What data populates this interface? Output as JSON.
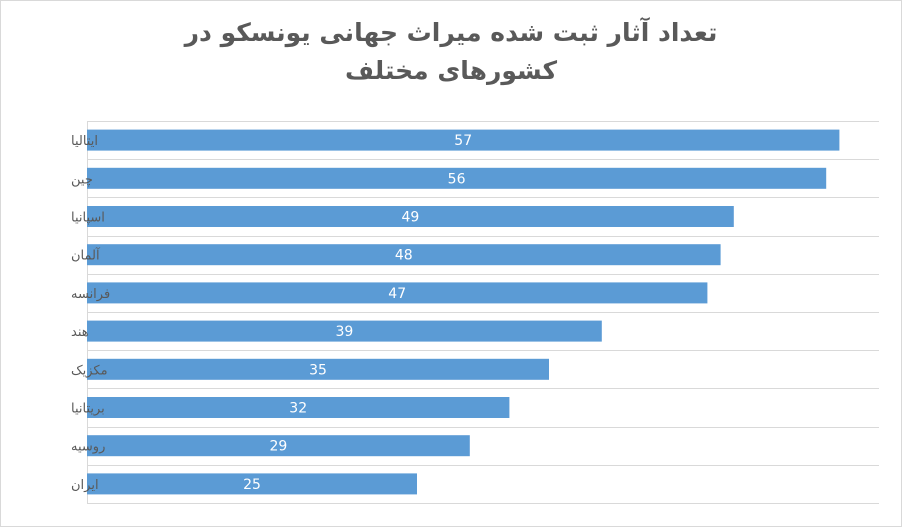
{
  "chart_data": {
    "type": "bar",
    "orientation": "horizontal",
    "title_lines": [
      "تعداد آثار ثبت شده میراث جهانی یونسکو در",
      "کشورهای مختلف"
    ],
    "categories": [
      "ایتالیا",
      "چین",
      "اسپانیا",
      "آلمان",
      "فرانسه",
      "هند",
      "مکزیک",
      "بریتانیا",
      "روسیه",
      "ایران"
    ],
    "values": [
      57,
      56,
      49,
      48,
      47,
      39,
      35,
      32,
      29,
      25
    ],
    "xlim": [
      0,
      60
    ],
    "grid": true,
    "legend": "none",
    "data_labels": "inside-center",
    "bar_color": "#5b9bd5",
    "label_color": "#ffffff",
    "text_color": "#595959",
    "grid_color": "#d9d9d9"
  }
}
